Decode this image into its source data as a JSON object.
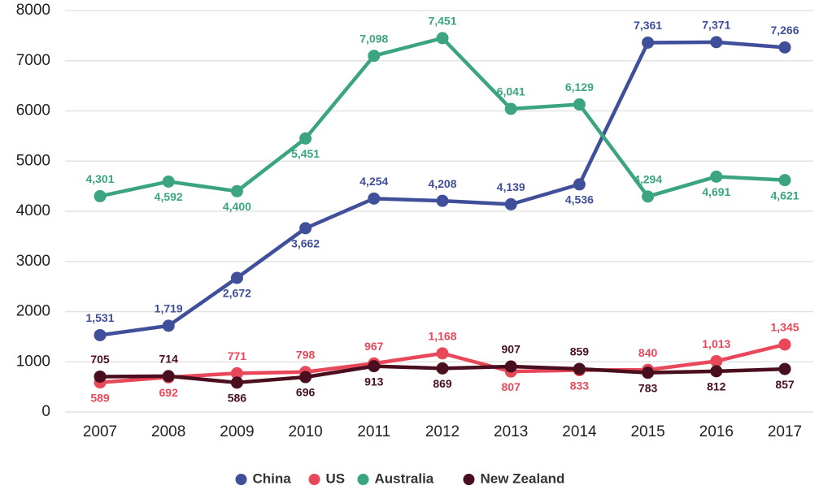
{
  "chart_data": {
    "type": "line",
    "categories": [
      "2007",
      "2008",
      "2009",
      "2010",
      "2011",
      "2012",
      "2013",
      "2014",
      "2015",
      "2016",
      "2017"
    ],
    "series": [
      {
        "name": "China",
        "color": "#3f4f9a",
        "values": [
          1531,
          1719,
          2672,
          3662,
          4254,
          4208,
          4139,
          4536,
          7361,
          7371,
          7266
        ],
        "value_labels": [
          "1,531",
          "1,719",
          "2,672",
          "3,662",
          "4,254",
          "4,208",
          "4,139",
          "4,536",
          "7,361",
          "7,371",
          "7,266"
        ]
      },
      {
        "name": "US",
        "color": "#e8485a",
        "values": [
          589,
          692,
          771,
          798,
          967,
          1168,
          807,
          833,
          840,
          1013,
          1345
        ],
        "value_labels": [
          "589",
          "692",
          "771",
          "798",
          "967",
          "1,168",
          "807",
          "833",
          "840",
          "1,013",
          "1,345"
        ]
      },
      {
        "name": "Australia",
        "color": "#3aa57f",
        "values": [
          4301,
          4592,
          4400,
          5451,
          7098,
          7451,
          6041,
          6129,
          4294,
          4691,
          4621
        ],
        "value_labels": [
          "4,301",
          "4,592",
          "4,400",
          "5,451",
          "7,098",
          "7,451",
          "6,041",
          "6,129",
          "4,294",
          "4,691",
          "4,621"
        ]
      },
      {
        "name": "New Zealand",
        "color": "#4a0f1f",
        "values": [
          705,
          714,
          586,
          696,
          913,
          869,
          907,
          859,
          783,
          812,
          857
        ]
      }
    ],
    "ylim": [
      0,
      8000
    ],
    "yticks": [
      0,
      1000,
      2000,
      3000,
      4000,
      5000,
      6000,
      7000,
      8000
    ],
    "grid": true,
    "legend": "bottom"
  }
}
